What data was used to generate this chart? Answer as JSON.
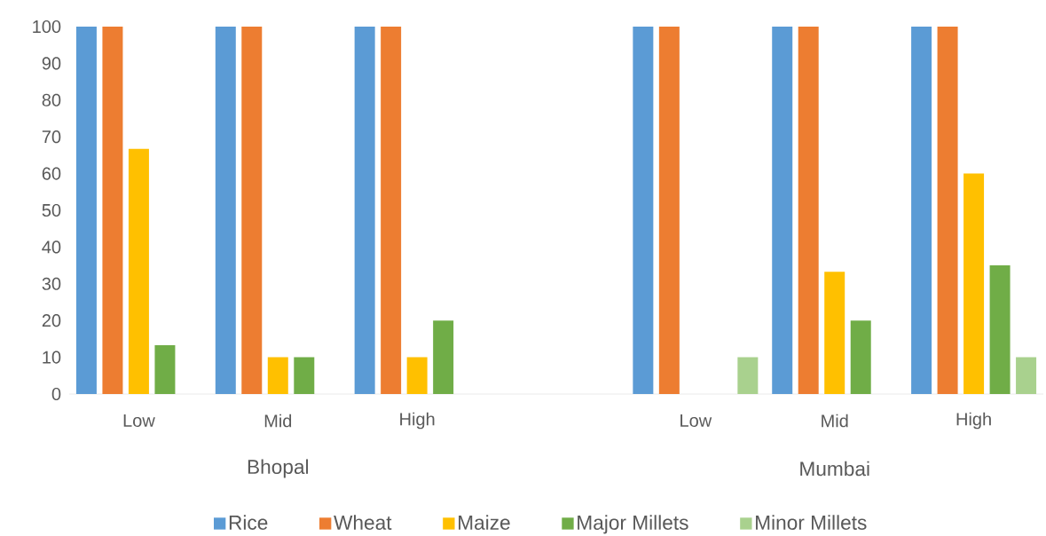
{
  "chart_data": {
    "type": "bar",
    "categories": [
      "Low",
      "Mid",
      "High",
      null,
      "Low",
      "Mid",
      "High"
    ],
    "annotations": [
      "Bhopal",
      "Mumbai"
    ],
    "series": [
      {
        "name": "Rice",
        "color": "#5b9bd5",
        "values": [
          100,
          100,
          100,
          null,
          100,
          100,
          100
        ]
      },
      {
        "name": "Wheat",
        "color": "#ed7d31",
        "values": [
          100,
          100,
          100,
          null,
          100,
          100,
          100
        ]
      },
      {
        "name": "Maize",
        "color": "#ffc000",
        "values": [
          66.7,
          10,
          10,
          null,
          0,
          33.3,
          60
        ]
      },
      {
        "name": "Major Millets",
        "color": "#70ad47",
        "values": [
          13.3,
          10,
          20,
          null,
          0,
          20,
          35
        ]
      },
      {
        "name": "Minor Millets",
        "color": "#a9d18e",
        "values": [
          0,
          0,
          0,
          null,
          10,
          0,
          10
        ]
      }
    ],
    "ylim": [
      0,
      100
    ],
    "yticks": [
      0,
      10,
      20,
      30,
      40,
      50,
      60,
      70,
      80,
      90,
      100
    ],
    "legend": "bottom"
  }
}
